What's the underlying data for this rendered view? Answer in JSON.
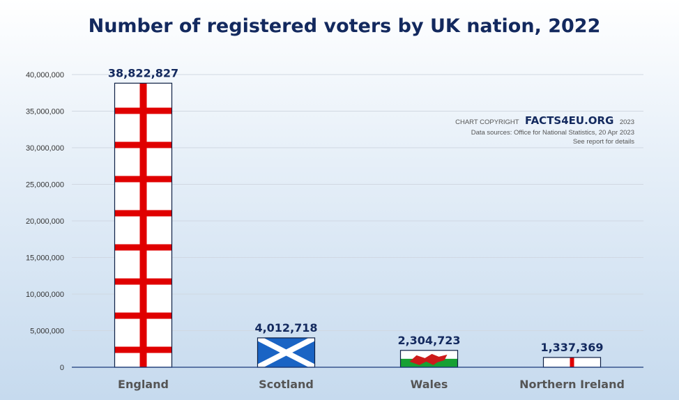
{
  "chart_data": {
    "type": "bar",
    "title": "Number of registered voters by UK nation, 2022",
    "categories": [
      "England",
      "Scotland",
      "Wales",
      "Northern Ireland"
    ],
    "values": [
      38822827,
      4012718,
      2304723,
      1337369
    ],
    "value_labels": [
      "38,822,827",
      "4,012,718",
      "2,304,723",
      "1,337,369"
    ],
    "bar_fills": [
      "england-flag",
      "scotland-flag",
      "wales-flag",
      "northern-ireland-flag"
    ],
    "ylim": [
      0,
      40000000
    ],
    "yticks": [
      0,
      5000000,
      10000000,
      15000000,
      20000000,
      25000000,
      30000000,
      35000000,
      40000000
    ],
    "ytick_labels": [
      "0",
      "5,000,000",
      "10,000,000",
      "15,000,000",
      "20,000,000",
      "25,000,000",
      "30,000,000",
      "35,000,000",
      "40,000,000"
    ],
    "xlabel": "",
    "ylabel": "",
    "grid": true,
    "legend": "none"
  },
  "credit": {
    "copyright_prefix": "CHART COPYRIGHT",
    "brand": "FACTS4EU.ORG",
    "year": "2023",
    "source": "Data sources: Office for National Statistics, 20 Apr 2023",
    "note": "See report for details"
  },
  "colors": {
    "title": "#13295e",
    "england_red": "#e00000",
    "scotland_blue": "#1a64c4",
    "wales_green": "#17a033",
    "wales_dragon": "#cc1a1a",
    "gridline": "#d0d8e2",
    "axis": "#1a3a7a",
    "bar_border": "#0d1f44"
  }
}
